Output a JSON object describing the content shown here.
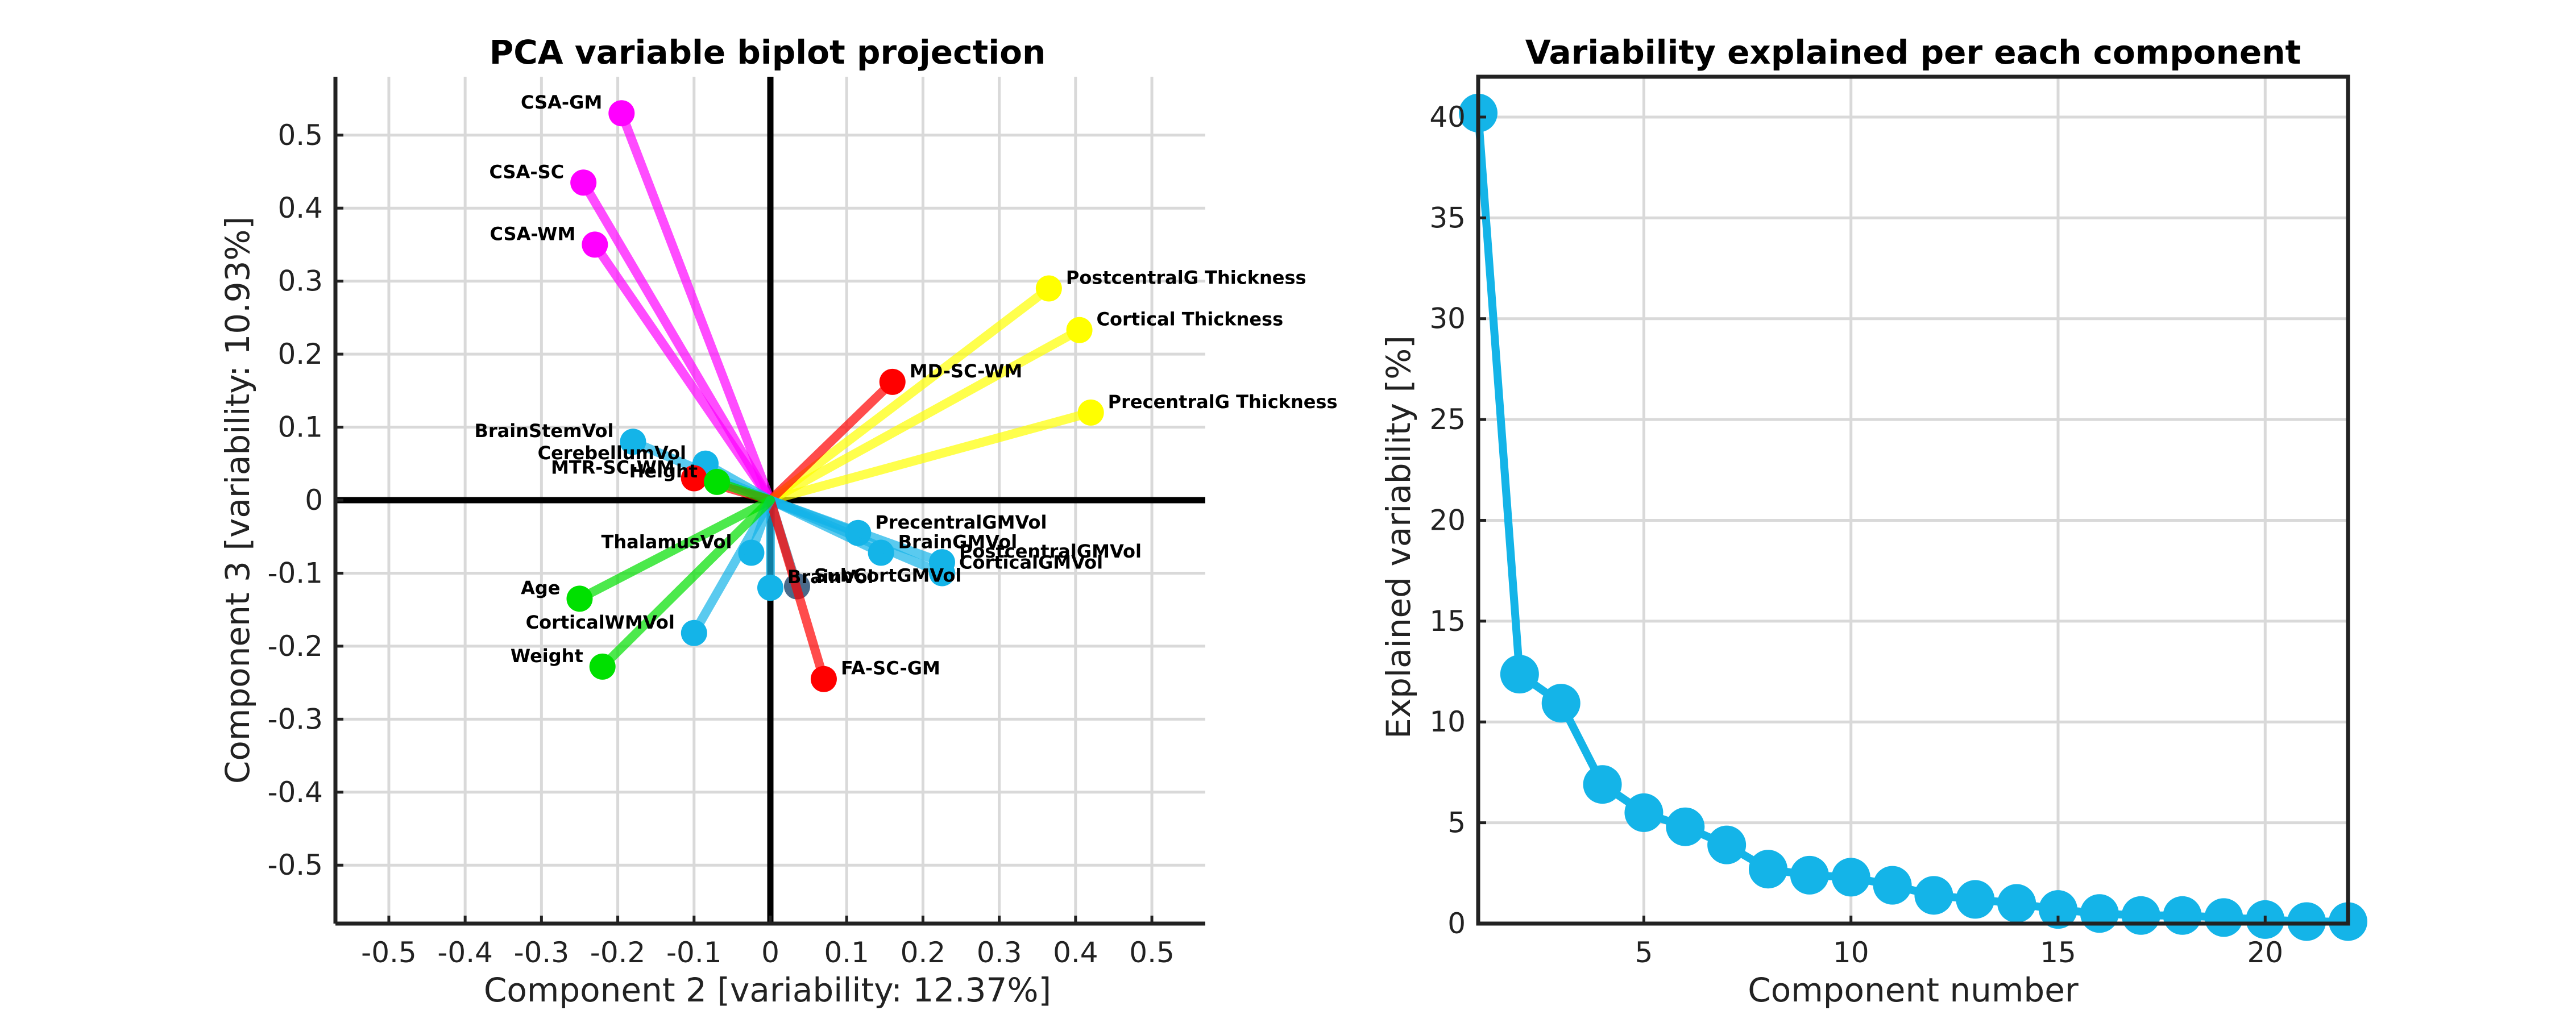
{
  "chart_data": [
    {
      "type": "biplot",
      "title": "PCA variable biplot projection",
      "xlabel": "Component 2 [variability: 12.37%]",
      "ylabel": "Component 3 [variability: 10.93%]",
      "xlim": [
        -0.57,
        0.57
      ],
      "ylim": [
        -0.58,
        0.58
      ],
      "xticks": [
        -0.5,
        -0.4,
        -0.3,
        -0.2,
        -0.1,
        0,
        0.1,
        0.2,
        0.3,
        0.4,
        0.5
      ],
      "xtick_labels": [
        "-0.5",
        "-0.4",
        "-0.3",
        "-0.2",
        "-0.1",
        "0",
        "0.1",
        "0.2",
        "0.3",
        "0.4",
        "0.5"
      ],
      "yticks": [
        0.5,
        0.4,
        0.3,
        0.2,
        0.1,
        0,
        -0.1,
        -0.2,
        -0.3,
        -0.4,
        -0.5
      ],
      "ytick_labels": [
        "0.5",
        "0.4",
        "0.3",
        "0.2",
        "0.1",
        "0",
        "-0.1",
        "-0.2",
        "-0.3",
        "-0.4",
        "-0.5"
      ],
      "grid": true,
      "colors": {
        "magenta": "#ff00ff",
        "yellow": "#ffff00",
        "red": "#ff0000",
        "cyan": "#14b4e8",
        "green": "#00e000",
        "slate": "#4a6a8a"
      },
      "vectors": [
        {
          "name": "CSA-GM",
          "x": -0.195,
          "y": 0.53,
          "color": "magenta"
        },
        {
          "name": "CSA-SC",
          "x": -0.245,
          "y": 0.435,
          "color": "magenta"
        },
        {
          "name": "CSA-WM",
          "x": -0.23,
          "y": 0.35,
          "color": "magenta"
        },
        {
          "name": "PostcentralG Thickness",
          "x": 0.365,
          "y": 0.29,
          "color": "yellow"
        },
        {
          "name": "Cortical Thickness",
          "x": 0.405,
          "y": 0.233,
          "color": "yellow"
        },
        {
          "name": "PrecentralG Thickness",
          "x": 0.42,
          "y": 0.12,
          "color": "yellow"
        },
        {
          "name": "MD-SC-WM",
          "x": 0.16,
          "y": 0.162,
          "color": "red"
        },
        {
          "name": "BrainStemVol",
          "x": -0.18,
          "y": 0.08,
          "color": "cyan"
        },
        {
          "name": "CerebellumVol",
          "x": -0.085,
          "y": 0.05,
          "color": "cyan"
        },
        {
          "name": "MTR-SC-WM",
          "x": -0.1,
          "y": 0.03,
          "color": "red"
        },
        {
          "name": "Height",
          "x": -0.07,
          "y": 0.025,
          "color": "green"
        },
        {
          "name": "PrecentralGMVol",
          "x": 0.115,
          "y": -0.045,
          "color": "cyan"
        },
        {
          "name": "BrainGMVol",
          "x": 0.145,
          "y": -0.072,
          "color": "cyan"
        },
        {
          "name": "PostcentralGMVol",
          "x": 0.225,
          "y": -0.085,
          "color": "cyan"
        },
        {
          "name": "CorticalGMVol",
          "x": 0.225,
          "y": -0.1,
          "color": "cyan"
        },
        {
          "name": "ThalamusVol",
          "x": -0.025,
          "y": -0.072,
          "color": "cyan"
        },
        {
          "name": "BrainVol",
          "x": 0.0,
          "y": -0.12,
          "color": "cyan"
        },
        {
          "name": "SubCortGMVol",
          "x": 0.035,
          "y": -0.118,
          "color": "slate"
        },
        {
          "name": "FA-SC-GM",
          "x": 0.07,
          "y": -0.245,
          "color": "red"
        },
        {
          "name": "Age",
          "x": -0.25,
          "y": -0.135,
          "color": "green"
        },
        {
          "name": "CorticalWMVol",
          "x": -0.1,
          "y": -0.182,
          "color": "cyan"
        },
        {
          "name": "Weight",
          "x": -0.22,
          "y": -0.228,
          "color": "green"
        }
      ]
    },
    {
      "type": "line",
      "title": "Variability explained per each component",
      "xlabel": "Component number",
      "ylabel": "Explained variability [%]",
      "xlim": [
        1,
        22
      ],
      "ylim": [
        0,
        42
      ],
      "xticks": [
        5,
        10,
        15,
        20
      ],
      "xtick_labels": [
        "5",
        "10",
        "15",
        "20"
      ],
      "yticks": [
        0,
        5,
        10,
        15,
        20,
        25,
        30,
        35,
        40
      ],
      "ytick_labels": [
        "0",
        "5",
        "10",
        "15",
        "20",
        "25",
        "30",
        "35",
        "40"
      ],
      "grid": true,
      "color": "#14b4e8",
      "x": [
        1,
        2,
        3,
        4,
        5,
        6,
        7,
        8,
        9,
        10,
        11,
        12,
        13,
        14,
        15,
        16,
        17,
        18,
        19,
        20,
        21,
        22
      ],
      "values": [
        40.2,
        12.37,
        10.93,
        6.9,
        5.5,
        4.8,
        3.9,
        2.7,
        2.4,
        2.3,
        1.9,
        1.4,
        1.2,
        1.0,
        0.7,
        0.5,
        0.4,
        0.4,
        0.3,
        0.2,
        0.1,
        0.1
      ]
    }
  ]
}
